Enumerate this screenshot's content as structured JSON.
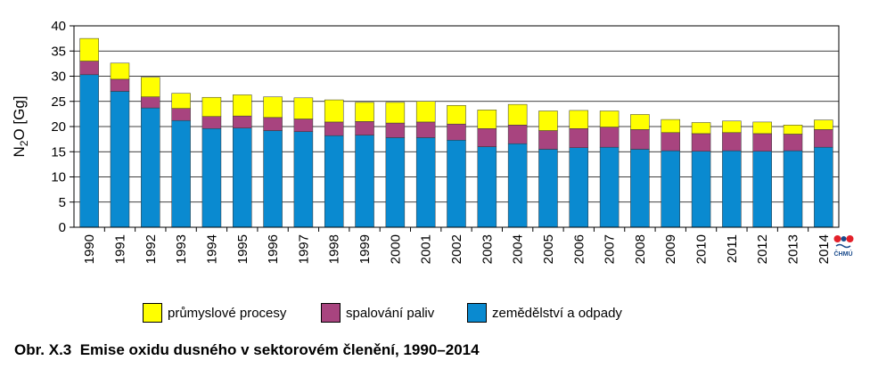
{
  "chart_data": {
    "type": "bar",
    "stacked": true,
    "categories": [
      "1990",
      "1991",
      "1992",
      "1993",
      "1994",
      "1995",
      "1996",
      "1997",
      "1998",
      "1999",
      "2000",
      "2001",
      "2002",
      "2003",
      "2004",
      "2005",
      "2006",
      "2007",
      "2008",
      "2009",
      "2010",
      "2011",
      "2012",
      "2013",
      "2014"
    ],
    "series": [
      {
        "name": "zemědělství a odpady",
        "color": "#0a8ad0",
        "values": [
          30.3,
          27.0,
          23.7,
          21.2,
          19.6,
          19.7,
          19.2,
          19.0,
          18.2,
          18.3,
          17.8,
          17.8,
          17.3,
          16.0,
          16.6,
          15.5,
          15.8,
          15.9,
          15.5,
          15.2,
          15.1,
          15.2,
          15.1,
          15.2,
          15.9
        ]
      },
      {
        "name": "spalování paliv",
        "color": "#a8447f",
        "values": [
          2.7,
          2.4,
          2.2,
          2.4,
          2.4,
          2.4,
          2.6,
          2.5,
          2.7,
          2.7,
          2.9,
          3.1,
          3.2,
          3.6,
          3.7,
          3.7,
          3.8,
          4.0,
          3.9,
          3.6,
          3.5,
          3.6,
          3.5,
          3.3,
          3.5
        ]
      },
      {
        "name": "průmyslové procesy",
        "color": "#ffff00",
        "values": [
          4.5,
          3.2,
          3.9,
          3.0,
          3.8,
          4.2,
          4.1,
          4.2,
          4.4,
          3.8,
          4.1,
          4.1,
          3.7,
          3.7,
          4.1,
          3.9,
          3.6,
          3.2,
          3.0,
          2.6,
          2.2,
          2.3,
          2.3,
          1.8,
          1.9
        ]
      }
    ],
    "ylabel_parts": {
      "base": "N",
      "sub": "2",
      "rest": "O [Gg]"
    },
    "ylim": [
      0,
      40
    ],
    "yticks": [
      0,
      5,
      10,
      15,
      20,
      25,
      30,
      35,
      40
    ],
    "grid": true,
    "legend_order": [
      "průmyslové procesy",
      "spalování paliv",
      "zemědělství a odpady"
    ],
    "legend_position": "bottom",
    "logo_text": "ČHMÚ"
  },
  "caption": "Obr. X.3  Emise oxidu dusného v sektorovém členění, 1990–2014"
}
